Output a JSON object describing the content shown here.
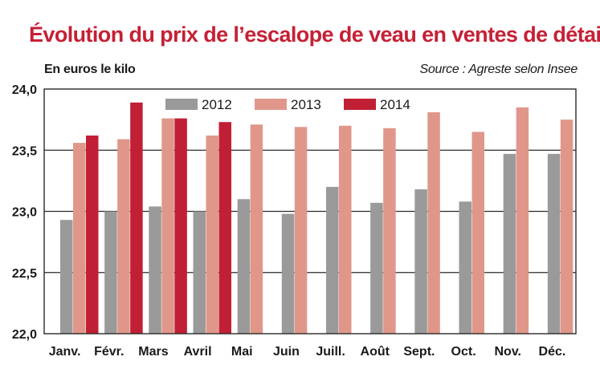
{
  "chart_data": {
    "type": "bar",
    "title": "Évolution du prix de l’escalope de veau en ventes de détail",
    "unit_label": "En euros le kilo",
    "source": "Source : Agreste selon Insee",
    "categories": [
      "Janv.",
      "Févr.",
      "Mars",
      "Avril",
      "Mai",
      "Juin",
      "Juill.",
      "Août",
      "Sept.",
      "Oct.",
      "Nov.",
      "Déc."
    ],
    "series": [
      {
        "name": "2012",
        "color": "#9a9a9a",
        "values": [
          22.93,
          23.0,
          23.04,
          23.0,
          23.1,
          22.98,
          23.2,
          23.07,
          23.18,
          23.08,
          23.47,
          23.47
        ]
      },
      {
        "name": "2013",
        "color": "#e0978a",
        "values": [
          23.56,
          23.59,
          23.76,
          23.62,
          23.71,
          23.69,
          23.7,
          23.68,
          23.81,
          23.65,
          23.85,
          23.75
        ]
      },
      {
        "name": "2014",
        "color": "#c11f35",
        "values": [
          23.62,
          23.89,
          23.76,
          23.73,
          null,
          null,
          null,
          null,
          null,
          null,
          null,
          null
        ]
      }
    ],
    "ylim": [
      22.0,
      24.0
    ],
    "yticks": [
      "22,0",
      "22,5",
      "23,0",
      "23,5",
      "24,0"
    ],
    "legend_position": "top-center",
    "grid": true
  }
}
